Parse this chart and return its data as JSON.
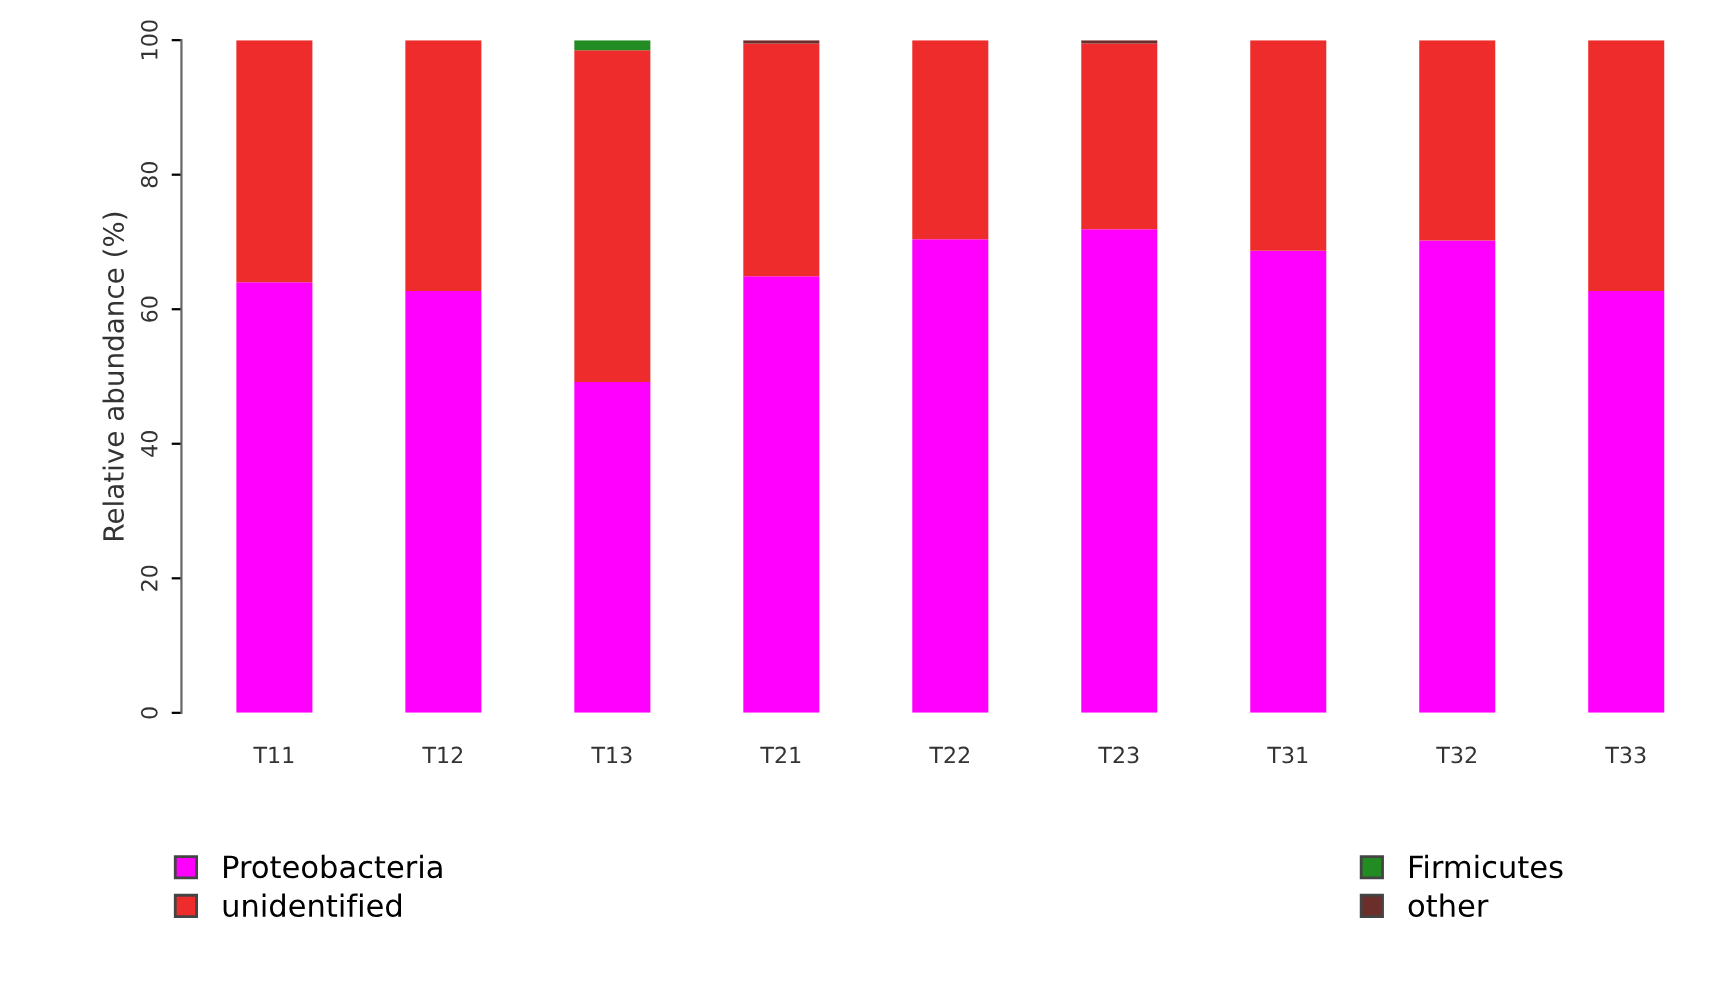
{
  "chart_data": {
    "type": "bar",
    "stacked": true,
    "ylabel": "Relative abundance (%)",
    "categories": [
      "T11",
      "T12",
      "T13",
      "T21",
      "T22",
      "T23",
      "T31",
      "T32",
      "T33"
    ],
    "series": [
      {
        "name": "Proteobacteria",
        "color": "#ff00ff",
        "values": [
          64,
          62.7,
          49.2,
          64.9,
          70.4,
          71.9,
          68.7,
          70.2,
          62.7
        ]
      },
      {
        "name": "unidentified",
        "color": "#ee2c2c",
        "values": [
          36,
          37.3,
          49.3,
          34.6,
          29.6,
          27.6,
          31.3,
          29.8,
          37.3
        ]
      },
      {
        "name": "Firmicutes",
        "color": "#228b22",
        "values": [
          0,
          0,
          1.5,
          0,
          0,
          0,
          0,
          0,
          0
        ]
      },
      {
        "name": "other",
        "color": "#6b2e2a",
        "values": [
          0,
          0,
          0,
          0.5,
          0,
          0.5,
          0,
          0,
          0
        ]
      }
    ],
    "ylim": [
      0,
      100
    ],
    "yticks": [
      0,
      20,
      40,
      60,
      80,
      100
    ],
    "grid": false,
    "legend": "bottom"
  }
}
